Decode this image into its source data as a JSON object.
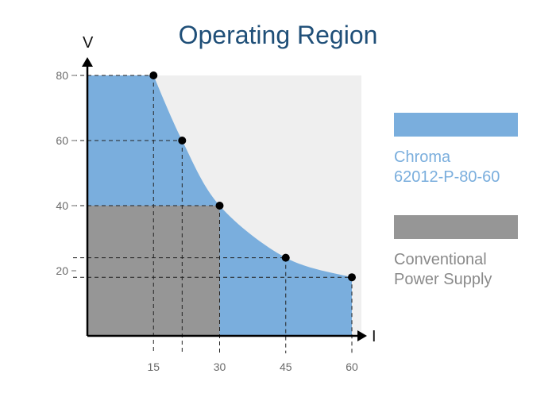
{
  "chart_data": {
    "type": "area",
    "title": "Operating Region",
    "xlabel": "I",
    "ylabel": "V",
    "xlim": [
      0,
      65
    ],
    "ylim": [
      0,
      85
    ],
    "xticks": [
      15,
      30,
      45,
      60
    ],
    "yticks": [
      20,
      40,
      60,
      80
    ],
    "series": [
      {
        "name": "Chroma 62012-P-80-60",
        "color": "#7aaedd",
        "points": [
          {
            "x": 0,
            "y": 80
          },
          {
            "x": 15,
            "y": 80
          },
          {
            "x": 21.5,
            "y": 60
          },
          {
            "x": 30,
            "y": 40
          },
          {
            "x": 45,
            "y": 24
          },
          {
            "x": 60,
            "y": 18
          }
        ]
      },
      {
        "name": "Conventional Power Supply",
        "color": "#969696",
        "rect": {
          "x": 30,
          "y": 40
        }
      }
    ],
    "markers": [
      {
        "x": 15,
        "y": 80
      },
      {
        "x": 21.5,
        "y": 60
      },
      {
        "x": 30,
        "y": 40
      },
      {
        "x": 45,
        "y": 24
      },
      {
        "x": 60,
        "y": 18
      }
    ],
    "background_region": {
      "x": 60,
      "y": 80,
      "color": "#efefef"
    },
    "grid": false,
    "legend_position": "right"
  },
  "legend": {
    "chroma_line1": "Chroma",
    "chroma_line2": "62012-P-80-60",
    "chroma_text_color": "#7aaedd",
    "conventional_line1": "Conventional",
    "conventional_line2": "Power Supply",
    "conventional_text_color": "#8a8a8a"
  }
}
